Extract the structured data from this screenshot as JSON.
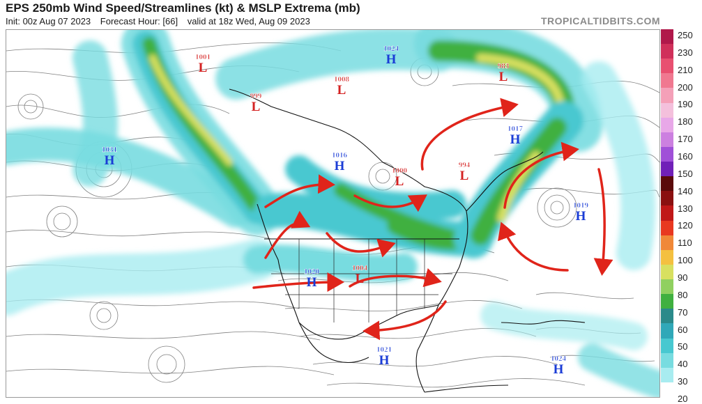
{
  "header": {
    "title": "EPS 250mb Wind Speed/Streamlines (kt) & MSLP Extrema (mb)",
    "init": "Init: 00z Aug 07 2023",
    "forecast_hour": "Forecast Hour: [66]",
    "valid": "valid at 18z Wed, Aug 09 2023",
    "brand": "TROPICALTIDBITS.COM"
  },
  "pressure_centers": [
    {
      "type": "H",
      "value": "1024",
      "color": "#1a3cd6"
    },
    {
      "type": "L",
      "value": "1001",
      "color": "#d42020"
    },
    {
      "type": "L",
      "value": "999",
      "color": "#d42020"
    },
    {
      "type": "L",
      "value": "1008",
      "color": "#d42020"
    },
    {
      "type": "L",
      "value": "983",
      "color": "#d42020"
    },
    {
      "type": "H",
      "value": "1031",
      "color": "#1a3cd6"
    },
    {
      "type": "H",
      "value": "1016",
      "color": "#1a3cd6"
    },
    {
      "type": "L",
      "value": "1000",
      "color": "#d42020"
    },
    {
      "type": "L",
      "value": "994",
      "color": "#d42020"
    },
    {
      "type": "H",
      "value": "1017",
      "color": "#1a3cd6"
    },
    {
      "type": "H",
      "value": "1019",
      "color": "#1a3cd6"
    },
    {
      "type": "H",
      "value": "1020",
      "color": "#1a3cd6"
    },
    {
      "type": "L",
      "value": "1004",
      "color": "#d42020"
    },
    {
      "type": "H",
      "value": "1021",
      "color": "#1a3cd6"
    },
    {
      "type": "H",
      "value": "1024",
      "color": "#1a3cd6"
    }
  ],
  "colorbar": {
    "labels": [
      "250",
      "230",
      "210",
      "200",
      "190",
      "180",
      "170",
      "160",
      "150",
      "140",
      "130",
      "120",
      "110",
      "100",
      "90",
      "80",
      "70",
      "60",
      "50",
      "40",
      "30",
      "20"
    ],
    "colors": [
      "#b0184a",
      "#d0305a",
      "#e85070",
      "#f07890",
      "#f4a0b8",
      "#f4c0dc",
      "#e8a8e8",
      "#cc80e0",
      "#a050d8",
      "#7020b8",
      "#5a0a0a",
      "#8a1010",
      "#c01818",
      "#e83820",
      "#f08838",
      "#f4c040",
      "#d8e060",
      "#90d060",
      "#40b040",
      "#2a8a8a",
      "#30a8b8",
      "#48c8d0",
      "#78dce0",
      "#a8ecf0",
      "#ffffff"
    ]
  },
  "arrow_color": "#e0241a"
}
